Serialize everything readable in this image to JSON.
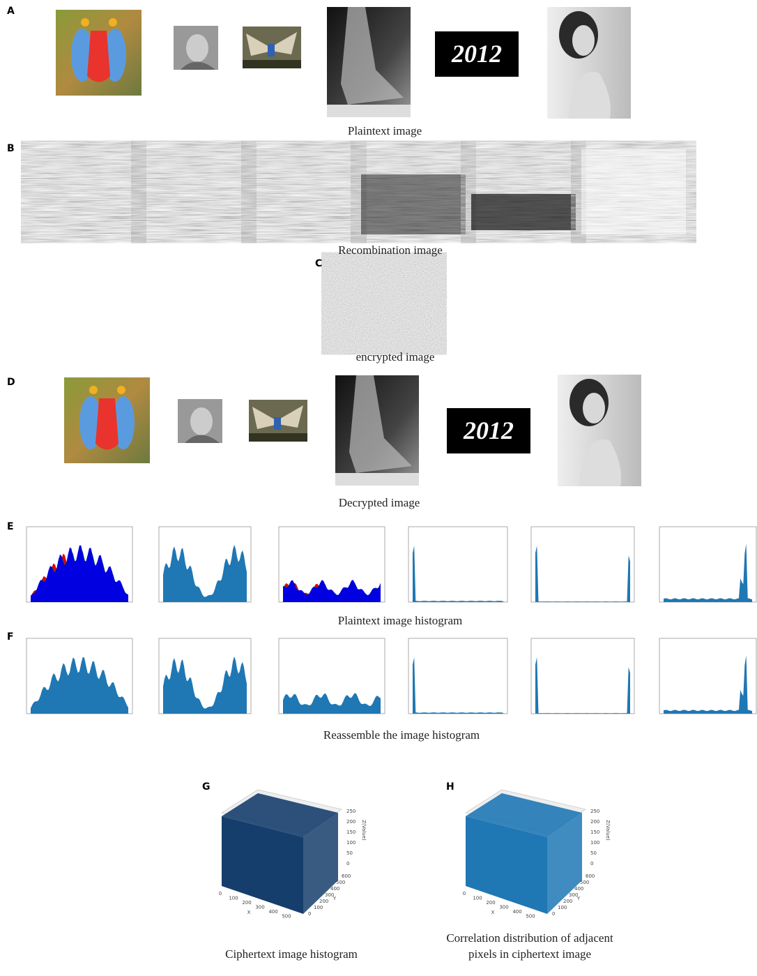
{
  "panels": [
    {
      "label": "A",
      "caption": "Plaintext image"
    },
    {
      "label": "B",
      "caption": "Recombination image"
    },
    {
      "label": "C",
      "caption": "encrypted image"
    },
    {
      "label": "D",
      "caption": "Decrypted image"
    },
    {
      "label": "E",
      "caption": "Plaintext image histogram"
    },
    {
      "label": "F",
      "caption": "Reassemble the image histogram"
    }
  ],
  "plots": [
    {
      "label": "G",
      "caption": "Ciphertext image histogram",
      "x_axis_label": "X",
      "y_axis_label": "Y",
      "z_axis_label": "Z(Value)",
      "xticks": [
        0,
        100,
        200,
        300,
        400,
        500
      ],
      "yticks": [
        0,
        100,
        200,
        300,
        400,
        500,
        600
      ],
      "zticks": [
        0,
        50,
        100,
        150,
        200,
        250
      ]
    },
    {
      "label": "H",
      "caption": "Correlation distribution of adjacent pixels in ciphertext image",
      "x_axis_label": "X",
      "y_axis_label": "Y",
      "z_axis_label": "Z(Value)",
      "xticks": [
        0,
        100,
        200,
        300,
        400,
        500
      ],
      "yticks": [
        0,
        100,
        200,
        300,
        400,
        500,
        600
      ],
      "zticks": [
        0,
        50,
        100,
        150,
        200,
        250
      ]
    }
  ]
}
